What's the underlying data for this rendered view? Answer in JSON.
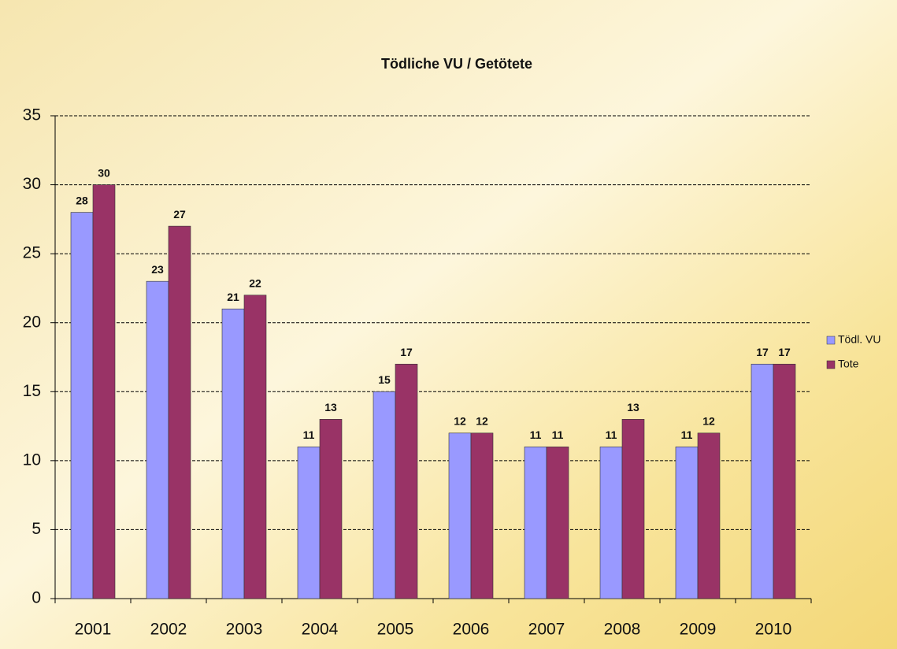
{
  "chart_data": {
    "type": "bar",
    "title": "Tödliche VU / Getötete",
    "categories": [
      "2001",
      "2002",
      "2003",
      "2004",
      "2005",
      "2006",
      "2007",
      "2008",
      "2009",
      "2010"
    ],
    "series": [
      {
        "name": "Tödl. VU",
        "color": "#9999ff",
        "values": [
          28,
          23,
          21,
          11,
          15,
          12,
          11,
          11,
          11,
          17
        ]
      },
      {
        "name": "Tote",
        "color": "#993366",
        "values": [
          30,
          27,
          22,
          13,
          17,
          12,
          11,
          13,
          12,
          17
        ]
      }
    ],
    "ylim": [
      0,
      35
    ],
    "yticks": [
      0,
      5,
      10,
      15,
      20,
      25,
      30,
      35
    ],
    "grid": true,
    "legend": "right"
  }
}
